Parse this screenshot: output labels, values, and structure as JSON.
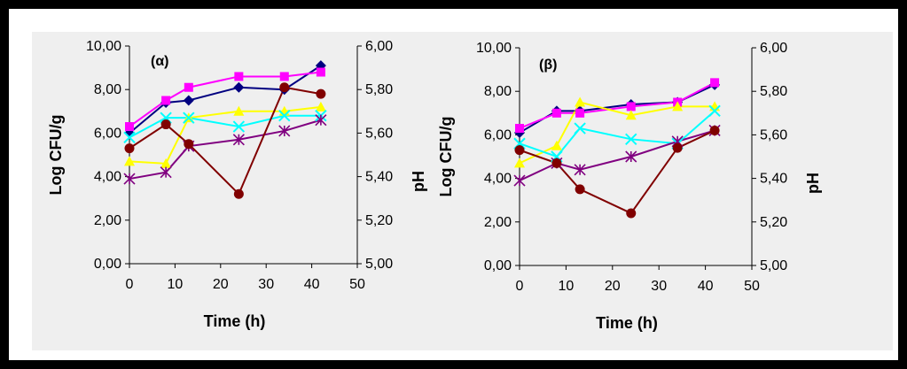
{
  "chart_data": [
    {
      "type": "line",
      "annotation": "(α)",
      "xlabel": "Time (h)",
      "ylabel": "Log CFU/g",
      "y2label": "pH",
      "xlim": [
        0,
        50
      ],
      "ylim": [
        0,
        10
      ],
      "y2lim": [
        5.0,
        6.0
      ],
      "xticks": [
        "0",
        "10",
        "20",
        "30",
        "40",
        "50"
      ],
      "yticks": [
        "0,00",
        "2,00",
        "4,00",
        "6,00",
        "8,00",
        "10,00"
      ],
      "y2ticks": [
        "5,00",
        "5,20",
        "5,40",
        "5,60",
        "5,80",
        "6,00"
      ],
      "grid": false,
      "series": [
        {
          "color": "#000080",
          "marker": "diamond",
          "x": [
            0,
            8,
            13,
            24,
            34,
            42
          ],
          "y": [
            6.0,
            7.4,
            7.5,
            8.1,
            8.0,
            9.1
          ]
        },
        {
          "color": "#ff00ff",
          "marker": "square",
          "x": [
            0,
            8,
            13,
            24,
            34,
            42
          ],
          "y": [
            6.3,
            7.5,
            8.1,
            8.6,
            8.6,
            8.8
          ]
        },
        {
          "color": "#ffff00",
          "marker": "triangle",
          "x": [
            0,
            8,
            13,
            24,
            34,
            42
          ],
          "y": [
            4.7,
            4.6,
            6.7,
            7.0,
            7.0,
            7.2
          ]
        },
        {
          "color": "#00ffff",
          "marker": "x",
          "x": [
            0,
            8,
            13,
            24,
            34,
            42
          ],
          "y": [
            5.8,
            6.7,
            6.7,
            6.3,
            6.8,
            6.8
          ]
        },
        {
          "color": "#800080",
          "marker": "star",
          "x": [
            0,
            8,
            13,
            24,
            34,
            42
          ],
          "y": [
            3.9,
            4.2,
            5.4,
            5.7,
            6.1,
            6.6
          ]
        },
        {
          "color": "#800000",
          "marker": "circle",
          "x": [
            0,
            8,
            13,
            24,
            34,
            42
          ],
          "y": [
            5.3,
            6.4,
            5.5,
            3.2,
            8.1,
            7.8
          ]
        }
      ]
    },
    {
      "type": "line",
      "annotation": "(β)",
      "xlabel": "Time (h)",
      "ylabel": "Log CFU/g",
      "y2label": "pH",
      "xlim": [
        0,
        50
      ],
      "ylim": [
        0,
        10
      ],
      "y2lim": [
        5.0,
        6.0
      ],
      "xticks": [
        "0",
        "10",
        "20",
        "30",
        "40",
        "50"
      ],
      "yticks": [
        "0,00",
        "2,00",
        "4,00",
        "6,00",
        "8,00",
        "10,00"
      ],
      "y2ticks": [
        "5,00",
        "5,20",
        "5,40",
        "5,60",
        "5,80",
        "6,00"
      ],
      "grid": false,
      "series": [
        {
          "color": "#000080",
          "marker": "diamond",
          "x": [
            0,
            8,
            13,
            24,
            34,
            42
          ],
          "y": [
            6.1,
            7.1,
            7.1,
            7.4,
            7.5,
            8.3
          ]
        },
        {
          "color": "#ff00ff",
          "marker": "square",
          "x": [
            0,
            8,
            13,
            24,
            34,
            42
          ],
          "y": [
            6.3,
            7.0,
            7.0,
            7.3,
            7.5,
            8.4
          ]
        },
        {
          "color": "#ffff00",
          "marker": "triangle",
          "x": [
            0,
            8,
            13,
            24,
            34,
            42
          ],
          "y": [
            4.7,
            5.5,
            7.5,
            6.9,
            7.3,
            7.3
          ]
        },
        {
          "color": "#00ffff",
          "marker": "x",
          "x": [
            0,
            8,
            13,
            24,
            34,
            42
          ],
          "y": [
            5.6,
            5.0,
            6.3,
            5.8,
            5.6,
            7.1
          ]
        },
        {
          "color": "#800080",
          "marker": "star",
          "x": [
            0,
            8,
            13,
            24,
            34,
            42
          ],
          "y": [
            3.9,
            4.7,
            4.4,
            5.0,
            5.7,
            6.2
          ]
        },
        {
          "color": "#800000",
          "marker": "circle",
          "x": [
            0,
            8,
            13,
            24,
            34,
            42
          ],
          "y": [
            5.3,
            4.7,
            3.5,
            2.4,
            5.4,
            6.2
          ]
        }
      ]
    }
  ]
}
